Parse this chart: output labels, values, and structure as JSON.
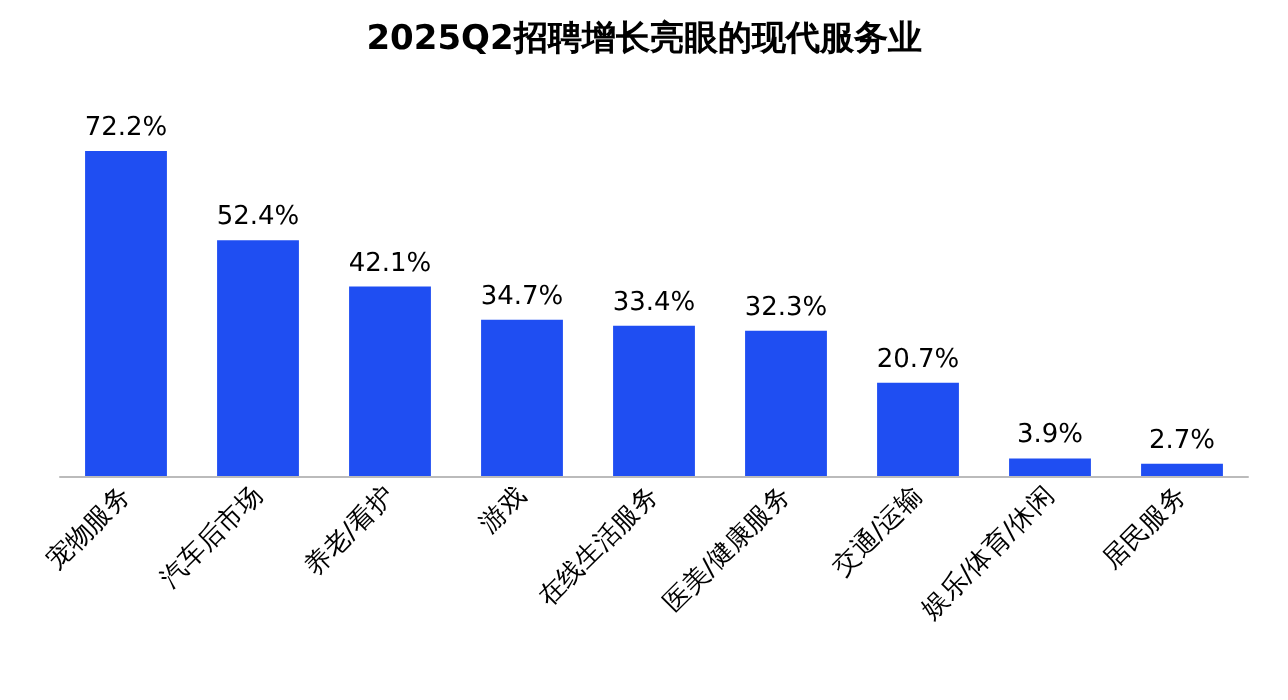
{
  "chart_data": {
    "type": "bar",
    "title": "2025Q2招聘增长亮眼的现代服务业",
    "categories": [
      "宠物服务",
      "汽车后市场",
      "养老/看护",
      "游戏",
      "在线生活服务",
      "医美/健康服务",
      "交通/运输",
      "娱乐/体育/休闲",
      "居民服务"
    ],
    "values": [
      72.2,
      52.4,
      42.1,
      34.7,
      33.4,
      32.3,
      20.7,
      3.9,
      2.7
    ],
    "value_labels": [
      "72.2%",
      "52.4%",
      "42.1%",
      "34.7%",
      "33.4%",
      "32.3%",
      "20.7%",
      "3.9%",
      "2.7%"
    ],
    "color": "#1f4ef2"
  }
}
